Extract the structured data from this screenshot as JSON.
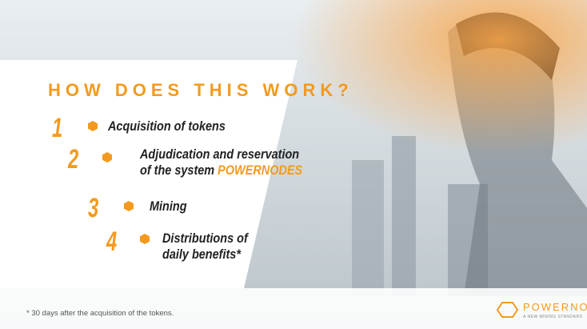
{
  "title": "HOW DOES THIS WORK?",
  "steps": [
    {
      "number": "1",
      "lines": [
        "Acquisition of tokens"
      ]
    },
    {
      "number": "2",
      "lines": [
        "Adjudication and reservation",
        "of the system"
      ],
      "highlight": "POWERNODES"
    },
    {
      "number": "3",
      "lines": [
        "Mining"
      ]
    },
    {
      "number": "4",
      "lines": [
        "Distributions of",
        "daily benefits*"
      ]
    }
  ],
  "footnote": "* 30 days after the acquisition of the tokens.",
  "logo": {
    "name": "POWERNODES",
    "tagline": "A NEW MINING STANDARD"
  }
}
